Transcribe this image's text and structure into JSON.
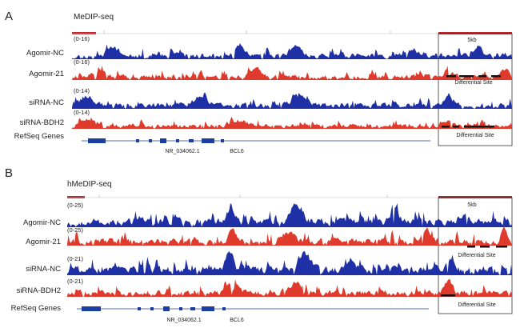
{
  "colors": {
    "blue": "#1f2fa6",
    "red": "#e03a2c",
    "scale": "#c0272d",
    "gene": "#1b3fa0"
  },
  "panels": [
    {
      "letter": "A",
      "title": "MeDIP-seq",
      "scale_label": "5kb",
      "ruler_ticks": [
        "",
        "",
        ""
      ],
      "tracks": [
        {
          "label": "Agomir-NC",
          "range": "(0-16)",
          "color": "blue"
        },
        {
          "label": "Agomir-21",
          "range": "(0-16)",
          "color": "red"
        },
        {
          "label": "siRNA-NC",
          "range": "(0-14)",
          "color": "blue"
        },
        {
          "label": "siRNA-BDH2",
          "range": "(0-14)",
          "color": "red"
        }
      ],
      "gene_track_label": "RefSeq Genes",
      "gene_names": [
        "NR_034062.1",
        "BCL6"
      ],
      "differential_site_label": "Differential Site"
    },
    {
      "letter": "B",
      "title": "hMeDIP-seq",
      "scale_label": "5kb",
      "ruler_ticks": [
        "",
        "",
        ""
      ],
      "tracks": [
        {
          "label": "Agomir-NC",
          "range": "(0-25)",
          "color": "blue"
        },
        {
          "label": "Agomir-21",
          "range": "(0-25)",
          "color": "red"
        },
        {
          "label": "siRNA-NC",
          "range": "(0-21)",
          "color": "blue"
        },
        {
          "label": "siRNA-BDH2",
          "range": "(0-21)",
          "color": "red"
        }
      ],
      "gene_track_label": "RefSeq Genes",
      "gene_names": [
        "NR_034062.1",
        "BCL6"
      ],
      "differential_site_label": "Differential Site"
    }
  ]
}
